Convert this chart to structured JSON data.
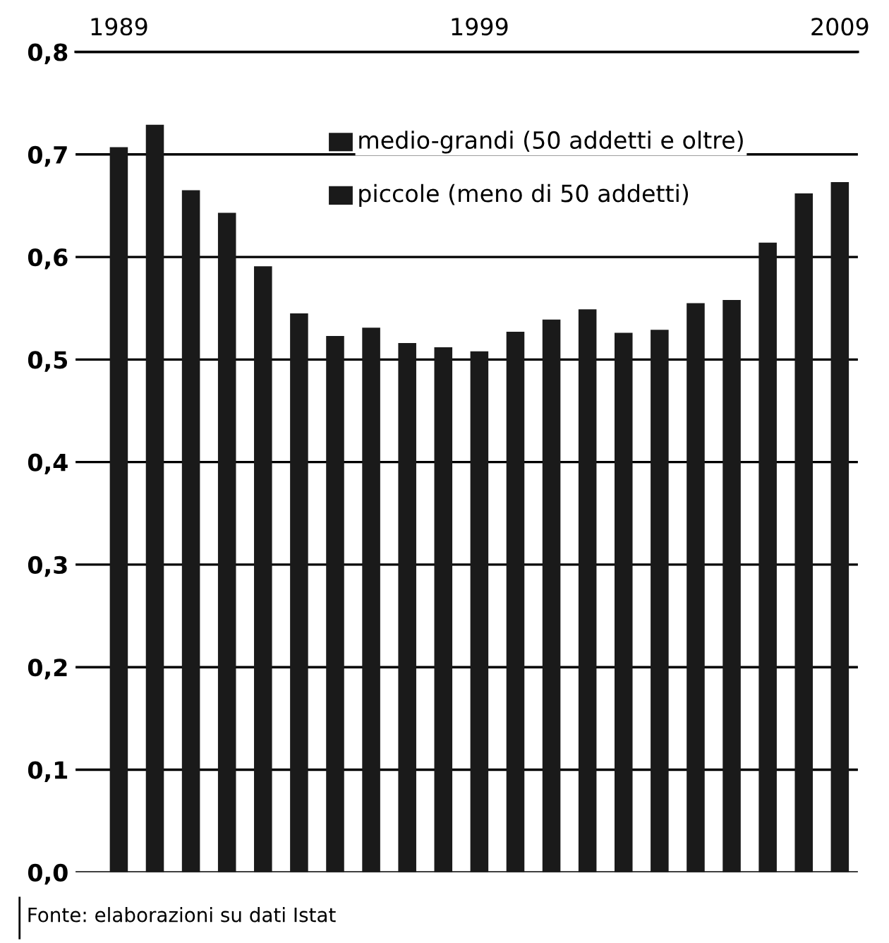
{
  "chart_data": {
    "type": "bar",
    "categories": [
      "1989",
      null,
      null,
      null,
      null,
      null,
      null,
      null,
      null,
      null,
      "1999",
      null,
      null,
      null,
      null,
      null,
      null,
      null,
      null,
      null,
      "2009"
    ],
    "series": [
      {
        "color": "#1a1a1a",
        "values": [
          0.707,
          0.729,
          0.665,
          0.643,
          0.591,
          0.545,
          0.523,
          0.531,
          0.516,
          0.512,
          0.508,
          0.527,
          0.539,
          0.549,
          0.526,
          0.529,
          0.555,
          0.558,
          0.614,
          0.662,
          0.673
        ]
      }
    ],
    "ylim": [
      0,
      0.8
    ],
    "yticks": [
      {
        "value": 0,
        "label": "0,0"
      },
      {
        "value": 0.1,
        "label": "0,1"
      },
      {
        "value": 0.2,
        "label": "0,2"
      },
      {
        "value": 0.3,
        "label": "0,3"
      },
      {
        "value": 0.4,
        "label": "0,4"
      },
      {
        "value": 0.5,
        "label": "0,5"
      },
      {
        "value": 0.6,
        "label": "0,6"
      },
      {
        "value": 0.7,
        "label": "0,7"
      },
      {
        "value": 0.8,
        "label": "0,8"
      }
    ],
    "grid": "y",
    "annotations": [
      "medio-grandi (50 addetti e oltre)",
      "piccole (meno di 50 addetti)",
      "Fonte: elaborazioni su dati Istat"
    ]
  }
}
